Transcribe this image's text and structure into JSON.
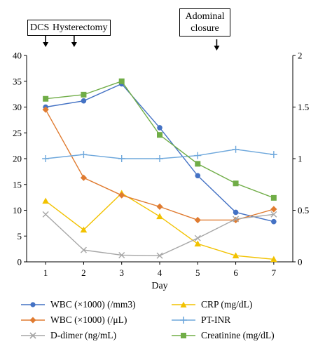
{
  "annotations": [
    {
      "id": "dcs",
      "text": "DCS",
      "day": 1
    },
    {
      "id": "hyst",
      "text": "Hysterectomy",
      "day": 1.75
    },
    {
      "id": "closure",
      "text_lines": [
        "Adominal",
        "closure"
      ],
      "day": 5.5
    }
  ],
  "chart_data": {
    "type": "line",
    "xlabel": "Day",
    "x": [
      1,
      2,
      3,
      4,
      5,
      6,
      7
    ],
    "ylim_left": [
      0,
      40
    ],
    "yticks_left": [
      0,
      5,
      10,
      15,
      20,
      25,
      30,
      35,
      40
    ],
    "ylim_right": [
      0,
      2
    ],
    "yticks_right": [
      0,
      0.5,
      1,
      1.5,
      2
    ],
    "grid": false,
    "legend_position": "bottom",
    "series": [
      {
        "name": "WBC (×1000) (/mm3)",
        "axis": "left",
        "color": "#4472c4",
        "marker": "circle",
        "values": [
          30,
          31.2,
          34.5,
          26,
          16.7,
          9.6,
          7.8
        ]
      },
      {
        "name": "CRP (mg/dL)",
        "axis": "left",
        "color": "#f2c200",
        "marker": "triangle",
        "values": [
          11.8,
          6.2,
          13.3,
          8.8,
          3.5,
          1.2,
          0.5
        ]
      },
      {
        "name": "WBC (×1000) (/μL)",
        "axis": "left",
        "color": "#e07b30",
        "marker": "diamond",
        "values": [
          29.5,
          16.3,
          12.9,
          10.7,
          8.1,
          8.1,
          10.2
        ]
      },
      {
        "name": "PT-INR",
        "axis": "right",
        "color": "#6fa8dc",
        "marker": "plus",
        "values": [
          1.0,
          1.04,
          1.0,
          1.0,
          1.03,
          1.09,
          1.04
        ]
      },
      {
        "name": "D-dimer (ng/mL)",
        "axis": "left",
        "color": "#a6a6a6",
        "marker": "x",
        "values": [
          9.2,
          2.3,
          1.3,
          1.2,
          4.6,
          8.3,
          9.2
        ]
      },
      {
        "name": "Creatinine (mg/dL)",
        "axis": "right",
        "color": "#70ad47",
        "marker": "square",
        "values": [
          1.58,
          1.62,
          1.75,
          1.23,
          0.95,
          0.76,
          0.62
        ]
      }
    ]
  }
}
